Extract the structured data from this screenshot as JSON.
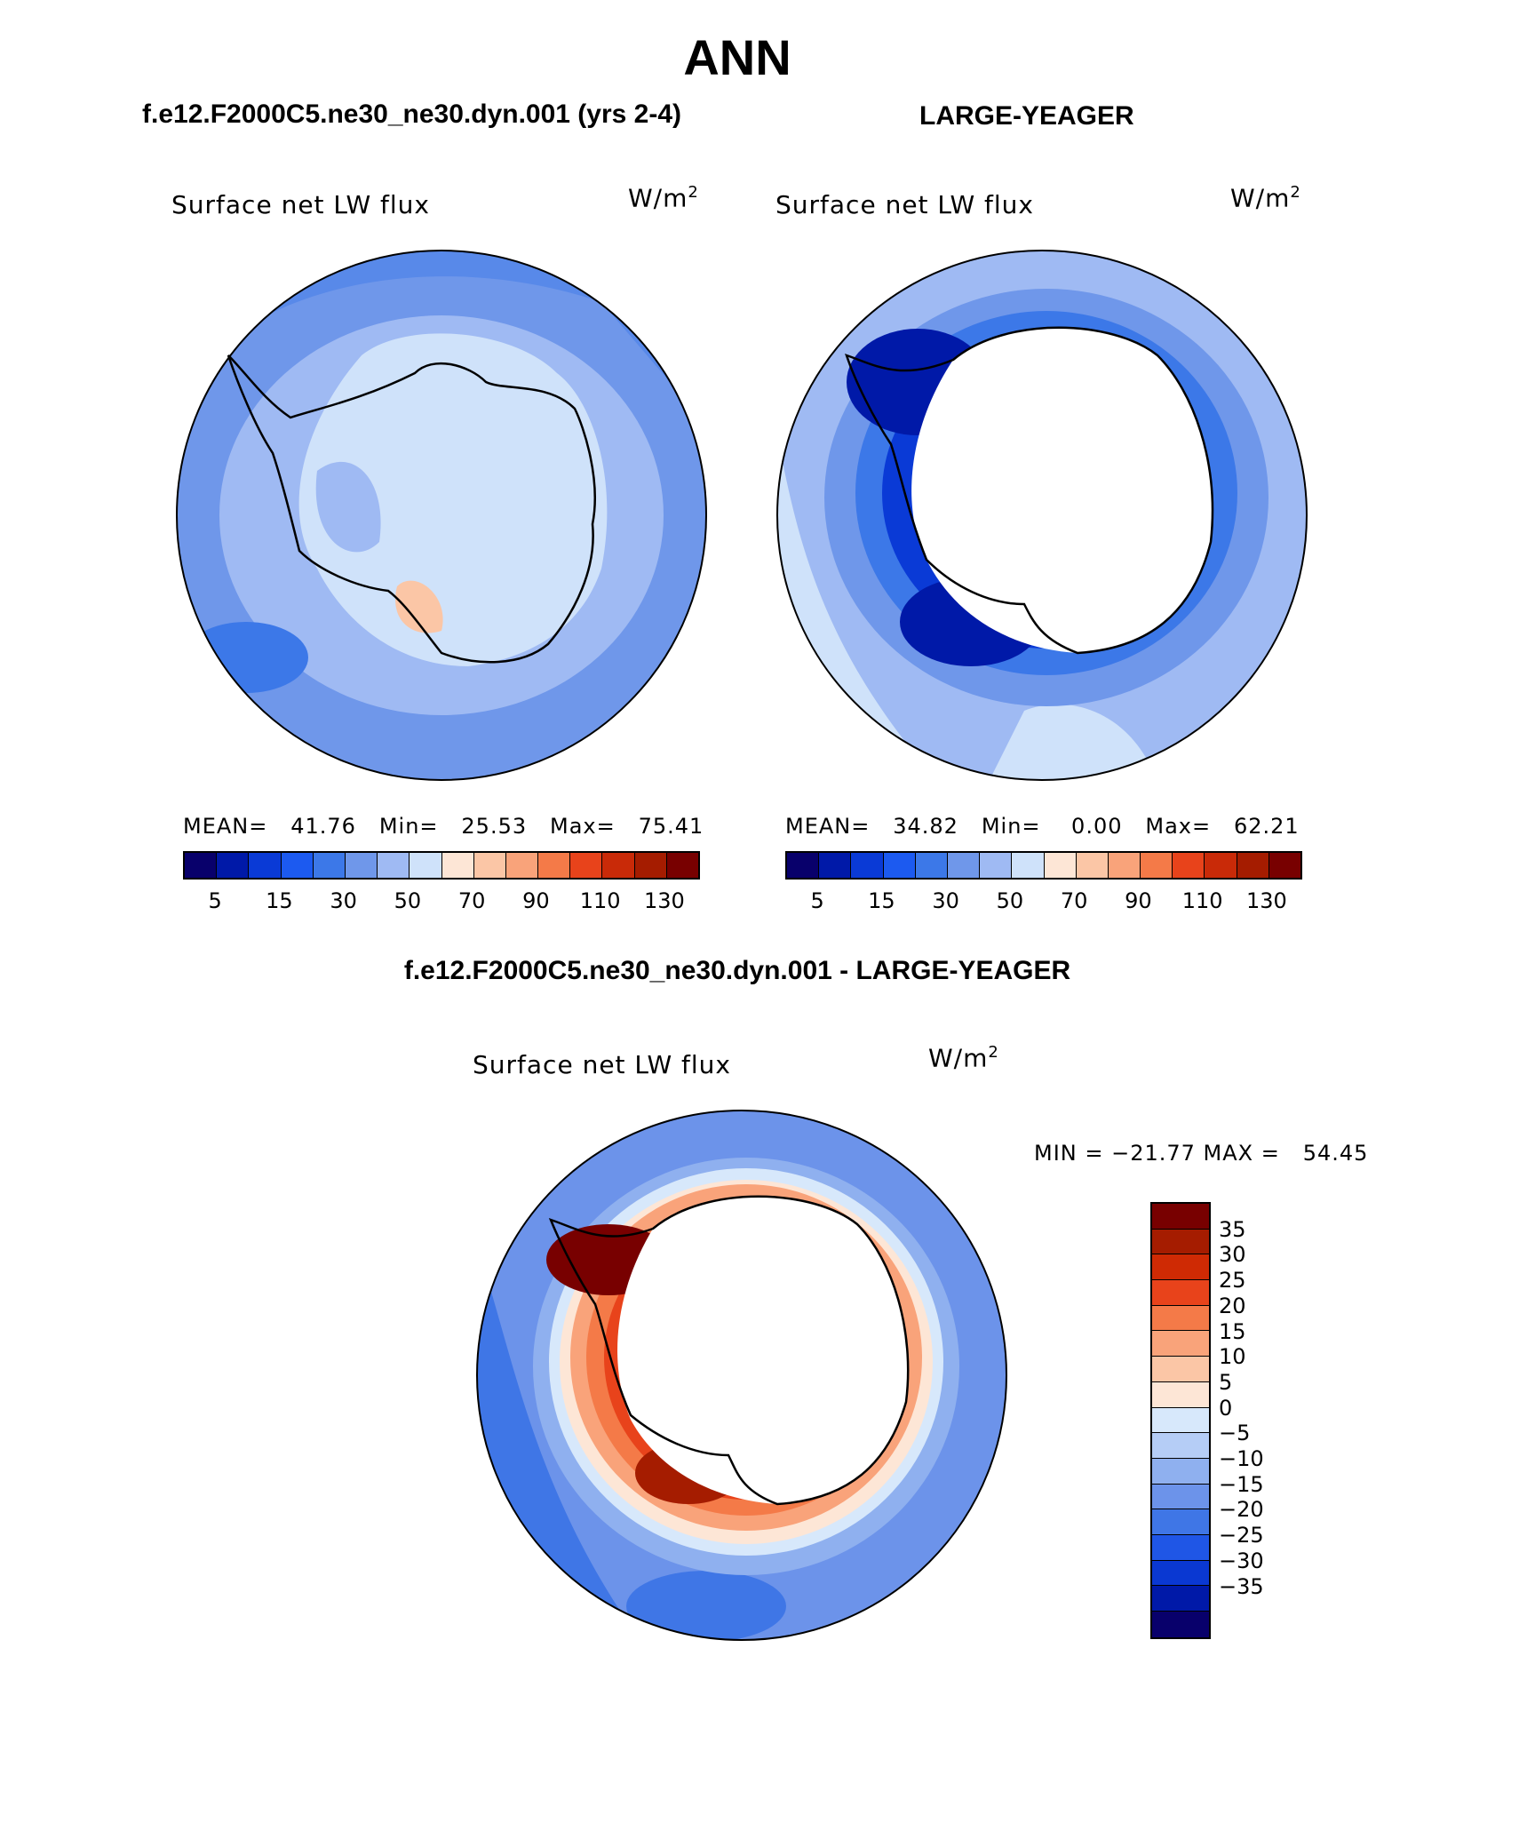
{
  "page": {
    "title": "ANN",
    "case_title": "f.e12.F2000C5.ne30_ne30.dyn.001 (yrs 2-4)",
    "ref_title": "LARGE-YEAGER",
    "diff_title": "f.e12.F2000C5.ne30_ne30.dyn.001 - LARGE-YEAGER"
  },
  "panels": {
    "case": {
      "variable": "Surface net LW flux",
      "units": "W/m",
      "units_sup": "2",
      "stats": "MEAN=   41.76   Min=   25.53   Max=   75.41"
    },
    "ref": {
      "variable": "Surface net LW flux",
      "units": "W/m",
      "units_sup": "2",
      "stats": "MEAN=   34.82   Min=    0.00   Max=   62.21"
    },
    "diff": {
      "variable": "Surface net LW flux",
      "units": "W/m",
      "units_sup": "2",
      "stats": "MIN = −21.77 MAX =   54.45"
    }
  },
  "colorbar_main": {
    "colors": [
      "#08006b",
      "#0019a8",
      "#0a3ad6",
      "#1c5af0",
      "#3c78e8",
      "#6f97ea",
      "#9fbaf3",
      "#cfe2fa",
      "#fde6d6",
      "#fbc6a6",
      "#f9a37a",
      "#f47a48",
      "#e8431b",
      "#c92a08",
      "#a51c00",
      "#780000"
    ],
    "labels": [
      "5",
      "15",
      "30",
      "50",
      "70",
      "90",
      "110",
      "130"
    ]
  },
  "colorbar_diff": {
    "colors": [
      "#780000",
      "#a51c00",
      "#cf2a04",
      "#e8431b",
      "#f47a48",
      "#f9a37a",
      "#fbc6a6",
      "#fde6d6",
      "#d7e8fb",
      "#b5cdf6",
      "#8fb0ef",
      "#6c93ea",
      "#3f76e6",
      "#1f56e6",
      "#0a38d2",
      "#0019a8",
      "#08006b"
    ],
    "labels": [
      "35",
      "30",
      "25",
      "20",
      "15",
      "10",
      "5",
      "0",
      "−5",
      "−10",
      "−15",
      "−20",
      "−25",
      "−30",
      "−35"
    ]
  }
}
